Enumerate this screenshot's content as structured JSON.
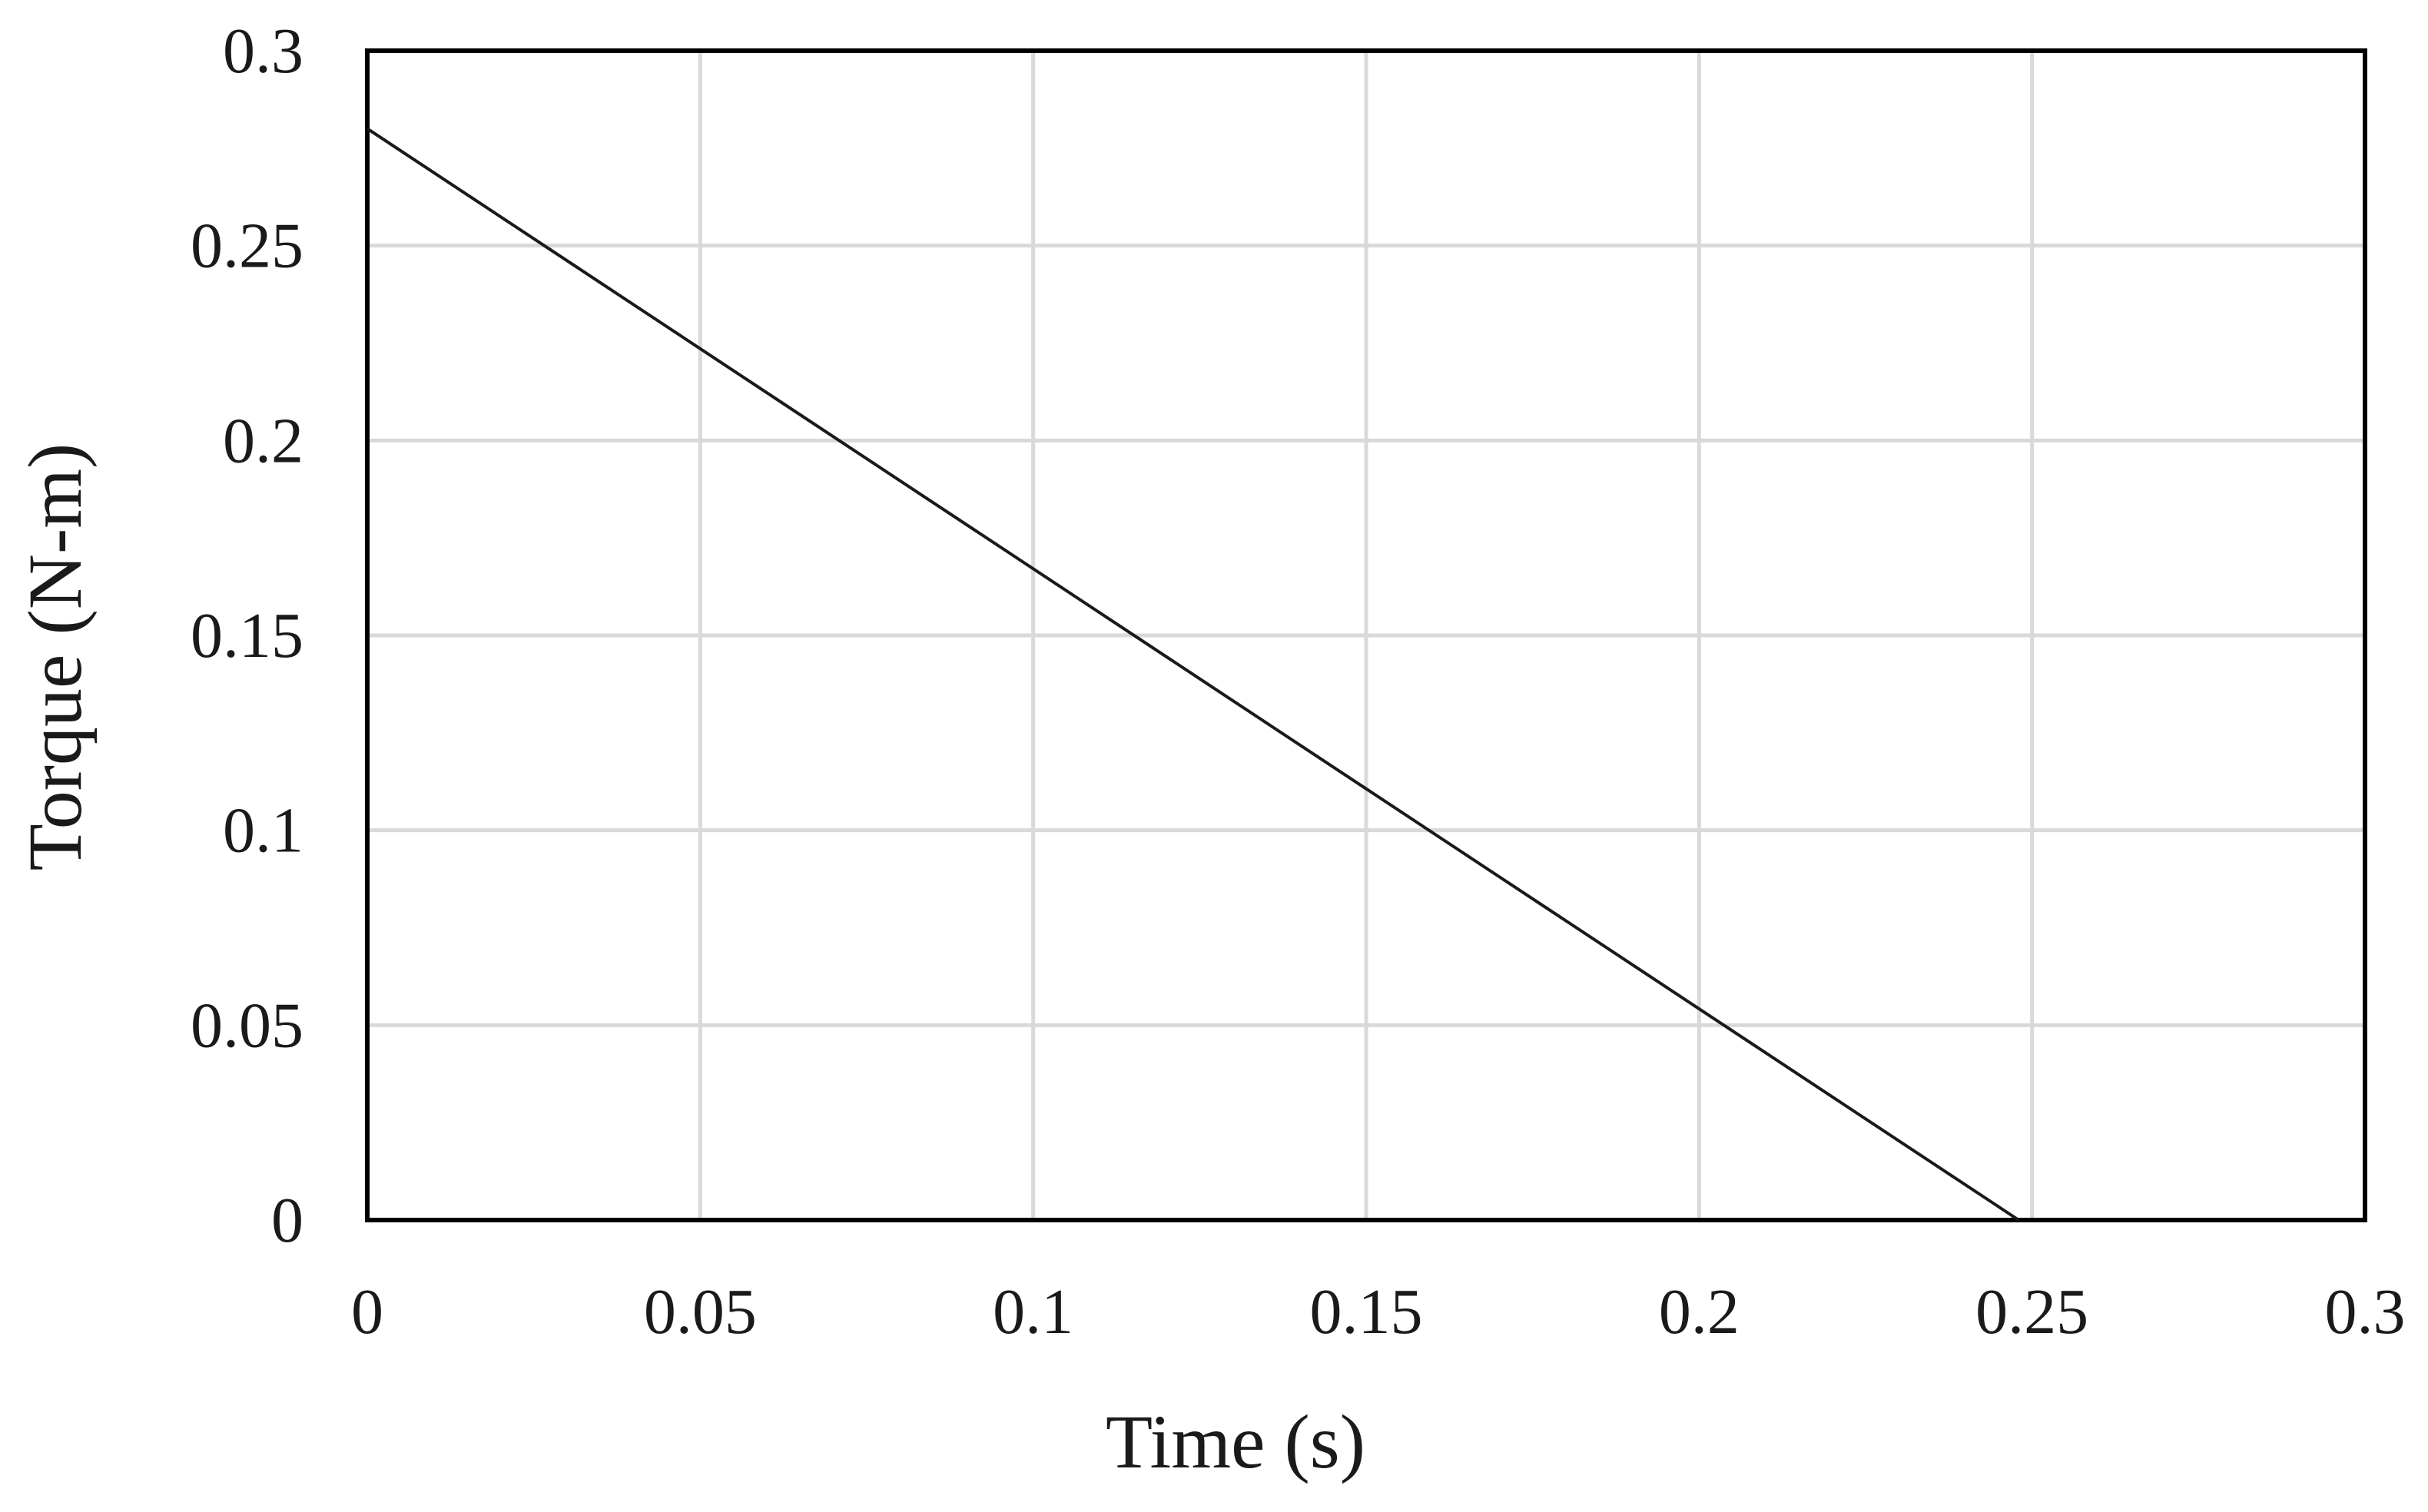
{
  "chart_data": {
    "type": "line",
    "title": "",
    "xlabel": "Time (s)",
    "ylabel": "Torque (N-m)",
    "xlim": [
      0,
      0.3
    ],
    "ylim": [
      0,
      0.3
    ],
    "x_ticks": [
      0,
      0.05,
      0.1,
      0.15,
      0.2,
      0.25,
      0.3
    ],
    "x_tick_labels": [
      "0",
      "0.05",
      "0.1",
      "0.15",
      "0.2",
      "0.25",
      "0.3"
    ],
    "y_ticks": [
      0,
      0.05,
      0.1,
      0.15,
      0.2,
      0.25,
      0.3
    ],
    "y_tick_labels": [
      "0",
      "0.05",
      "0.1",
      "0.15",
      "0.2",
      "0.25",
      "0.3"
    ],
    "grid": true,
    "legend": "none",
    "series": [
      {
        "color": "#1a1a1a",
        "x": [
          0,
          0.248
        ],
        "y": [
          0.28,
          0
        ]
      }
    ]
  }
}
